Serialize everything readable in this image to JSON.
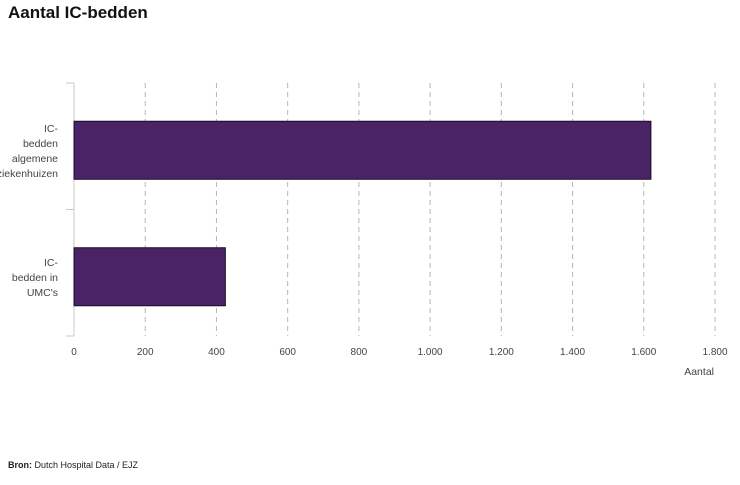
{
  "title": "Aantal IC-bedden",
  "source": {
    "label": "Bron:",
    "text": "Dutch Hospital Data / EJZ"
  },
  "chart_data": {
    "type": "bar",
    "orientation": "horizontal",
    "title": "Aantal IC-bedden",
    "xlabel": "Aantal",
    "ylabel": "",
    "categories": [
      [
        "IC-",
        "bedden",
        "algemene",
        "ziekenhuizen"
      ],
      [
        "IC-",
        "bedden in",
        "UMC's"
      ]
    ],
    "values": [
      1620,
      425
    ],
    "xlim": [
      0,
      1800
    ],
    "ticks": [
      0,
      200,
      400,
      600,
      800,
      1000,
      1200,
      1400,
      1600,
      1800
    ],
    "tick_labels": [
      "0",
      "200",
      "400",
      "600",
      "800",
      "1.000",
      "1.200",
      "1.400",
      "1.600",
      "1.800"
    ],
    "grid": true,
    "bar_color": "#4a2266",
    "bar_edge_color": "#1a0a26"
  }
}
